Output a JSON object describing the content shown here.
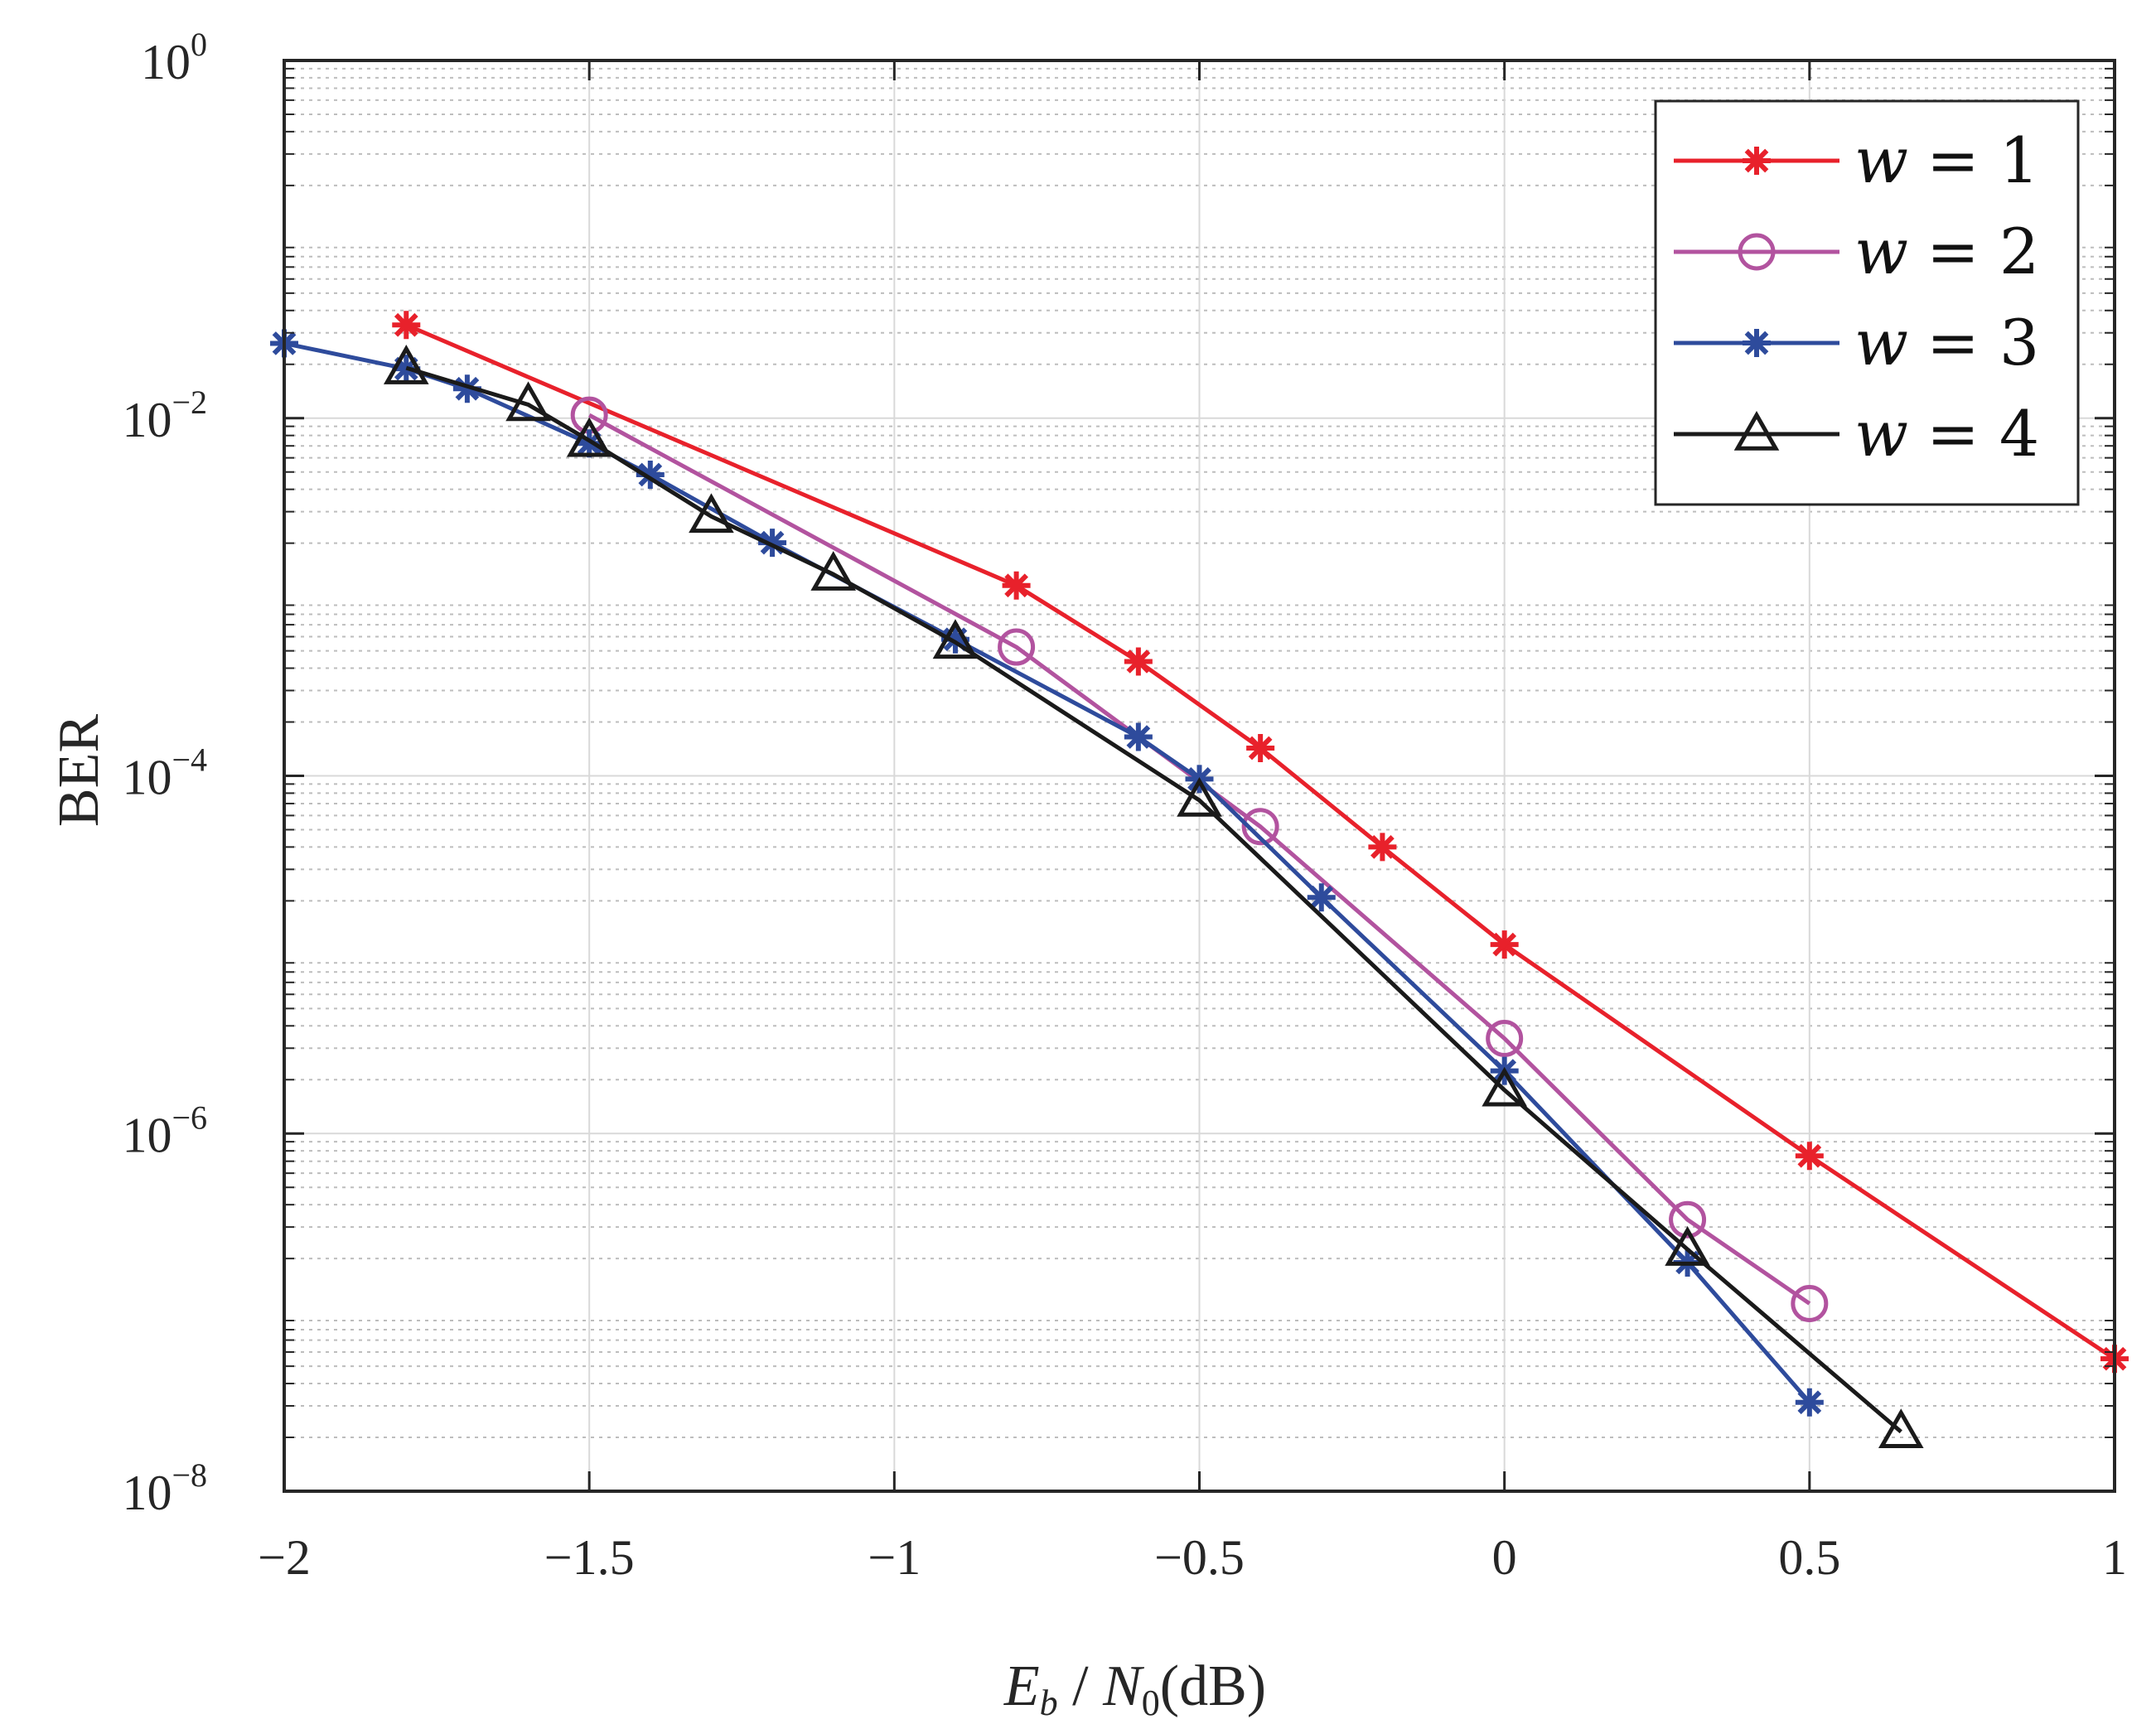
{
  "chart_data": {
    "type": "line",
    "title": "",
    "xlabel": "E_b / N_0(dB)",
    "xlabel_parts": {
      "e": "E",
      "e_sub": "b",
      "sep": " / ",
      "n": "N",
      "n_sub": "0",
      "unit": "(dB)"
    },
    "ylabel": "BER",
    "xscale": "linear",
    "yscale": "log",
    "xlim": [
      -2,
      1
    ],
    "ylim": [
      1e-08,
      1
    ],
    "grid": true,
    "minor_grid": true,
    "legend_position": "top-right",
    "x_ticks": [
      {
        "value": -2,
        "label": "−2"
      },
      {
        "value": -1.5,
        "label": "−1.5"
      },
      {
        "value": -1,
        "label": "−1"
      },
      {
        "value": -0.5,
        "label": "−0.5"
      },
      {
        "value": 0,
        "label": "0"
      },
      {
        "value": 0.5,
        "label": "0.5"
      },
      {
        "value": 1,
        "label": "1"
      }
    ],
    "y_ticks": [
      {
        "exponent": -8,
        "base": "10",
        "sup": "−8"
      },
      {
        "exponent": -6,
        "base": "10",
        "sup": "−6"
      },
      {
        "exponent": -4,
        "base": "10",
        "sup": "−4"
      },
      {
        "exponent": -2,
        "base": "10",
        "sup": "−2"
      },
      {
        "exponent": 0,
        "base": "10",
        "sup": "0"
      }
    ],
    "series": [
      {
        "name": "w = 1",
        "legend_lhs": "w",
        "legend_rhs": "= 1",
        "color": "#e8212b",
        "marker": "asterisk",
        "x": [
          -1.8,
          -0.8,
          -0.6,
          -0.4,
          -0.2,
          0,
          0.5,
          1
        ],
        "y": [
          0.0332,
          0.00116,
          0.000436,
          0.000143,
          4e-05,
          1.14e-05,
          7.5e-07,
          5.5e-08
        ]
      },
      {
        "name": "w = 2",
        "legend_lhs": "w",
        "legend_rhs": "= 2",
        "color": "#b2539f",
        "marker": "circle",
        "x": [
          -1.5,
          -0.8,
          -0.4,
          0,
          0.3,
          0.5
        ],
        "y": [
          0.0104,
          0.000525,
          5.2e-05,
          3.4e-06,
          3.3e-07,
          1.12e-07
        ]
      },
      {
        "name": "w = 3",
        "legend_lhs": "w",
        "legend_rhs": "= 3",
        "color": "#2e4b9c",
        "marker": "asterisk",
        "x": [
          -2,
          -1.8,
          -1.7,
          -1.5,
          -1.4,
          -1.2,
          -0.9,
          -0.6,
          -0.5,
          -0.3,
          0,
          0.3,
          0.5
        ],
        "y": [
          0.0262,
          0.0189,
          0.0146,
          0.00722,
          0.00483,
          0.00201,
          0.00058,
          0.000165,
          9.6e-05,
          2.09e-05,
          2.24e-06,
          1.9e-07,
          3.14e-08
        ]
      },
      {
        "name": "w = 4",
        "legend_lhs": "w",
        "legend_rhs": "= 4",
        "color": "#1a1a1a",
        "marker": "triangle",
        "x": [
          -1.8,
          -1.6,
          -1.5,
          -1.3,
          -1.1,
          -0.9,
          -0.5,
          0,
          0.3,
          0.65
        ],
        "y": [
          0.0191,
          0.0119,
          0.0075,
          0.00282,
          0.00134,
          0.000558,
          7.3e-05,
          1.75e-06,
          2.25e-07,
          2.15e-08
        ]
      }
    ]
  }
}
